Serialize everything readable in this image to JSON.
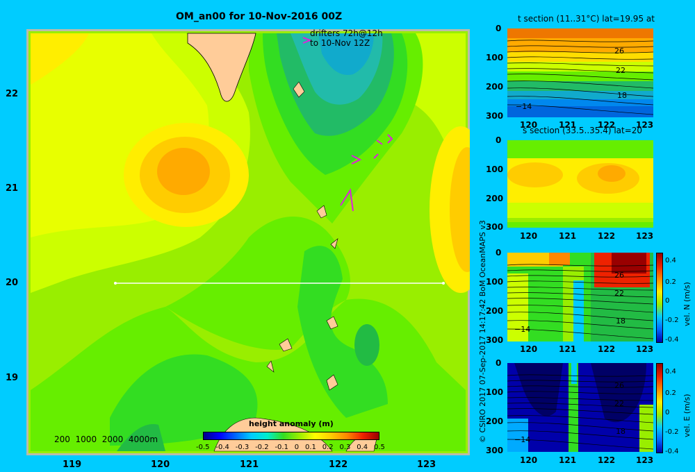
{
  "map": {
    "title": "OM_an00 for 10-Nov-2016 00Z",
    "drifters_label_1": "drifters 72h@12h",
    "drifters_label_2": "to 10-Nov 12Z",
    "lat_ticks": [
      "22",
      "21",
      "20",
      "19"
    ],
    "lon_ticks": [
      "119",
      "120",
      "121",
      "122",
      "123"
    ],
    "depth_legend": "200  1000  2000  4000m",
    "colorbar_title": "height anomaly (m)",
    "colorbar_labels": [
      "-0.5",
      "-0.4",
      "-0.3",
      "-0.2",
      "-0.1",
      "0",
      "0.1",
      "0.2",
      "0.3",
      "0.4",
      "0.5"
    ],
    "section_line_lat": 20
  },
  "credit": "© CSIRO 2017   07-Sep-2017 14:17:42 BoM OceanMAPS v3",
  "panels": {
    "temp": {
      "title": "t section (11..31°C) lat=19.95 at",
      "contour_labels": [
        "26",
        "22",
        "18",
        "14"
      ]
    },
    "salt": {
      "title": "s section (33.5..35.4) lat=20"
    },
    "veln": {
      "contour_labels": [
        "26",
        "22",
        "18",
        "14"
      ],
      "cbar_labels": [
        "0.4",
        "0.2",
        "0",
        "-0.2",
        "-0.4"
      ],
      "cbar_title": "vel. N (m/s)"
    },
    "vele": {
      "contour_labels": [
        "26",
        "22",
        "18",
        "14"
      ],
      "cbar_labels": [
        "0.4",
        "0.2",
        "0",
        "-0.2",
        "-0.4"
      ],
      "cbar_title": "vel. E (m/s)"
    },
    "depth_ticks": [
      "0",
      "100",
      "200",
      "300"
    ],
    "lon_ticks": [
      "120",
      "121",
      "122",
      "123"
    ]
  }
}
